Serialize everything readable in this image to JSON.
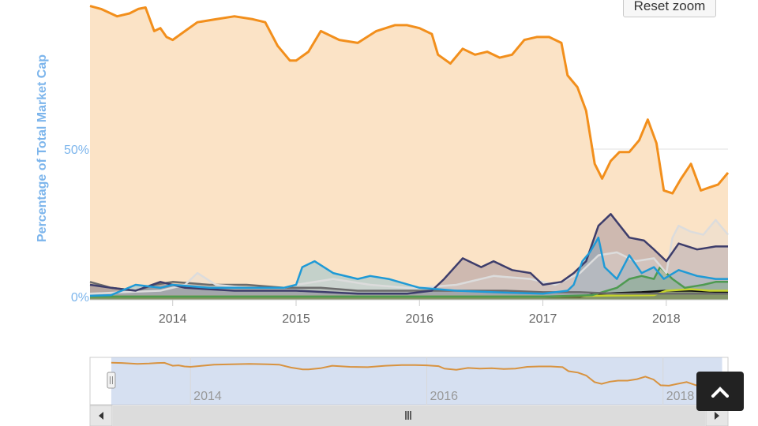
{
  "ui": {
    "reset_zoom_label": "Reset zoom"
  },
  "colors": {
    "plot_bg": "#fbe3c6",
    "axis_label": "#7cb5ec",
    "tick_text": "#666666",
    "navigator_mask": "rgba(180,198,230,0.55)",
    "scrollbar": "#e6e6e6",
    "up_button": "#222222"
  },
  "chart_data": {
    "type": "area",
    "ylabel": "Percentage of Total Market Cap",
    "y_ticks": [
      {
        "value": 0,
        "label": "0%"
      },
      {
        "value": 50,
        "label": "50%"
      }
    ],
    "ylim": [
      0,
      100
    ],
    "xlim": [
      2013.33,
      2018.5
    ],
    "x_ticks": [
      {
        "value": 2014,
        "label": "2014"
      },
      {
        "value": 2015,
        "label": "2015"
      },
      {
        "value": 2016,
        "label": "2016"
      },
      {
        "value": 2017,
        "label": "2017"
      },
      {
        "value": 2018,
        "label": "2018"
      }
    ],
    "grid": true,
    "series": [
      {
        "color": "#f28f1c",
        "fill": "#fbe3c6",
        "x": [
          2013.33,
          2013.42,
          2013.55,
          2013.65,
          2013.72,
          2013.78,
          2013.85,
          2013.9,
          2013.95,
          2014.0,
          2014.1,
          2014.2,
          2014.35,
          2014.5,
          2014.65,
          2014.75,
          2014.85,
          2014.95,
          2015.0,
          2015.1,
          2015.2,
          2015.35,
          2015.5,
          2015.65,
          2015.8,
          2015.9,
          2016.0,
          2016.1,
          2016.15,
          2016.25,
          2016.35,
          2016.45,
          2016.55,
          2016.65,
          2016.75,
          2016.85,
          2016.95,
          2017.05,
          2017.15,
          2017.2,
          2017.28,
          2017.35,
          2017.42,
          2017.48,
          2017.55,
          2017.62,
          2017.7,
          2017.78,
          2017.85,
          2017.92,
          2017.98,
          2018.05,
          2018.12,
          2018.2,
          2018.28,
          2018.35,
          2018.42,
          2018.5
        ],
        "values": [
          98.5,
          97.5,
          95,
          96,
          97.5,
          98,
          90,
          91,
          88,
          87,
          90,
          93,
          94,
          95,
          94,
          93,
          85,
          80,
          80,
          83,
          90,
          87,
          86,
          90,
          92,
          92,
          91,
          89,
          82,
          79,
          84,
          82,
          83,
          81,
          82,
          87,
          88,
          88,
          86,
          75,
          71,
          63,
          45,
          40,
          46,
          49,
          49,
          53,
          60,
          52,
          36,
          35,
          40,
          45,
          36,
          37,
          38,
          42
        ]
      },
      {
        "color": "#1f9ad6",
        "fill": "rgba(31,154,214,0.25)",
        "x": [
          2013.33,
          2013.5,
          2013.7,
          2013.9,
          2014.0,
          2014.3,
          2014.6,
          2014.9,
          2015.0,
          2015.05,
          2015.15,
          2015.3,
          2015.5,
          2015.6,
          2015.75,
          2016.0,
          2016.3,
          2016.6,
          2017.0,
          2017.2,
          2017.25,
          2017.32,
          2017.38,
          2017.45,
          2017.5,
          2017.6,
          2017.7,
          2017.8,
          2017.9,
          2017.98,
          2018.1,
          2018.25,
          2018.4,
          2018.5
        ],
        "values": [
          0.3,
          0.5,
          4,
          3,
          4,
          3,
          3,
          3,
          4,
          10,
          12,
          8,
          6,
          7,
          6,
          3,
          2,
          1.5,
          1,
          2,
          4,
          12,
          15,
          20,
          10,
          6,
          14,
          8,
          10,
          6,
          9,
          7,
          6,
          6
        ]
      },
      {
        "color": "#3d3d6b",
        "fill": "rgba(70,60,110,0.25)",
        "x": [
          2013.33,
          2013.5,
          2013.7,
          2013.9,
          2014.1,
          2014.5,
          2015.0,
          2015.5,
          2015.9,
          2016.1,
          2016.2,
          2016.35,
          2016.5,
          2016.6,
          2016.75,
          2016.9,
          2017.0,
          2017.15,
          2017.25,
          2017.35,
          2017.45,
          2017.55,
          2017.7,
          2017.82,
          2017.9,
          2018.0,
          2018.1,
          2018.25,
          2018.4,
          2018.5
        ],
        "values": [
          4,
          3,
          2,
          5,
          3,
          2,
          2,
          1,
          1,
          2,
          6,
          13,
          10,
          12,
          9,
          8,
          4,
          5,
          8,
          12,
          24,
          28,
          20,
          19,
          16,
          12,
          18,
          16,
          17,
          17
        ]
      },
      {
        "color": "#dcdcdc",
        "fill": "rgba(220,220,220,0.3)",
        "x": [
          2013.33,
          2013.6,
          2013.9,
          2014.1,
          2014.2,
          2014.35,
          2014.6,
          2014.9,
          2015.0,
          2015.3,
          2015.6,
          2015.9,
          2016.0,
          2016.3,
          2016.6,
          2016.9,
          2017.0,
          2017.1,
          2017.2,
          2017.3,
          2017.45,
          2017.6,
          2017.75,
          2017.9,
          2018.0,
          2018.05,
          2018.1,
          2018.2,
          2018.3,
          2018.4,
          2018.5
        ],
        "values": [
          1,
          1.5,
          2,
          4,
          8,
          4,
          3,
          3,
          4,
          6,
          4,
          3,
          3,
          4,
          7,
          6,
          5,
          4,
          6,
          8,
          14,
          15,
          12,
          13,
          8,
          20,
          24,
          22,
          21,
          26,
          21
        ]
      },
      {
        "color": "#6b6b6b",
        "fill": "rgba(110,110,110,0.25)",
        "x": [
          2013.33,
          2013.5,
          2013.7,
          2013.85,
          2014.0,
          2014.3,
          2014.6,
          2014.9,
          2015.2,
          2015.5,
          2015.8,
          2016.1,
          2016.4,
          2016.7,
          2017.0,
          2017.3,
          2017.6,
          2017.9,
          2018.2,
          2018.5
        ],
        "values": [
          5,
          3,
          2,
          4,
          5,
          4,
          4,
          3,
          3,
          2,
          2,
          2,
          2,
          2,
          1.5,
          1.5,
          1,
          1,
          1,
          1
        ]
      },
      {
        "color": "#4e9a51",
        "fill": "rgba(78,154,81,0.25)",
        "x": [
          2013.33,
          2015.0,
          2016.0,
          2017.0,
          2017.4,
          2017.6,
          2017.7,
          2017.8,
          2017.9,
          2017.95,
          2018.05,
          2018.15,
          2018.3,
          2018.4,
          2018.5
        ],
        "values": [
          0,
          0,
          0,
          0,
          0.5,
          3,
          6,
          7,
          6,
          10,
          6,
          3,
          4,
          5,
          5
        ]
      },
      {
        "color": "#c6d42e",
        "fill": "rgba(198,212,46,0.25)",
        "x": [
          2013.33,
          2017.0,
          2017.4,
          2017.9,
          2018.0,
          2018.2,
          2018.35,
          2018.5
        ],
        "values": [
          0,
          0,
          0.3,
          0.5,
          2,
          2.5,
          2,
          2
        ]
      },
      {
        "color": "#111111",
        "fill": "rgba(0,0,0,0.15)",
        "x": [
          2013.33,
          2017.3,
          2017.45,
          2017.8,
          2018.0,
          2018.2,
          2018.5
        ],
        "values": [
          0,
          0,
          1,
          1.5,
          2,
          2,
          1.5
        ]
      }
    ],
    "navigator": {
      "x_ticks": [
        {
          "value": 2014,
          "label": "2014"
        },
        {
          "value": 2016,
          "label": "2016"
        },
        {
          "value": 2018,
          "label": "2018"
        }
      ],
      "selected_range": [
        2013.33,
        2018.5
      ]
    }
  }
}
